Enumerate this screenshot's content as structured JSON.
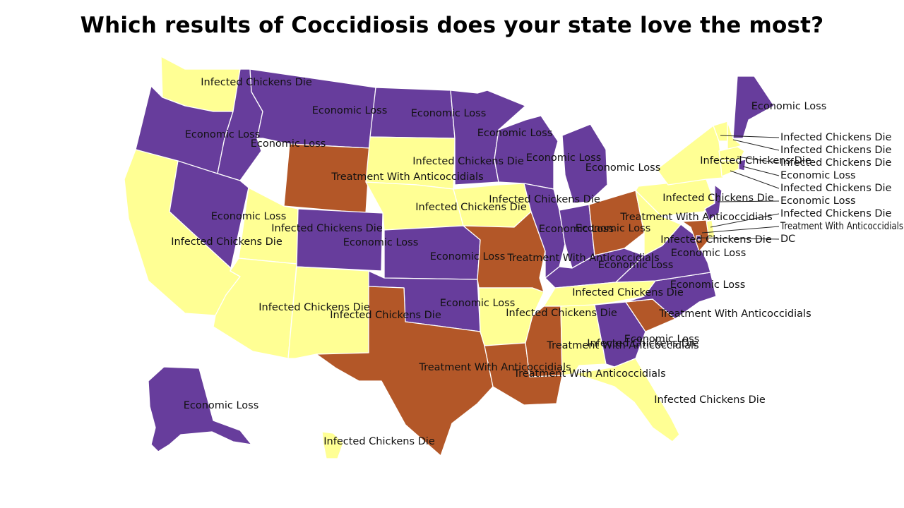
{
  "title": "Which results of Coccidiosis does your state love the most?",
  "colors": {
    "Economic Loss": "#673d9c",
    "Infected Chickens Die": "#ffff94",
    "Treatment With Anticoccidials": "#b35728"
  },
  "states": [
    {
      "id": "WA",
      "category": "Infected Chickens Die",
      "label": "Infected Chickens Die"
    },
    {
      "id": "OR",
      "category": "Economic Loss",
      "label": "Economic Loss"
    },
    {
      "id": "CA",
      "category": "Infected Chickens Die",
      "label": "Infected Chickens Die"
    },
    {
      "id": "ID",
      "category": "Economic Loss",
      "label": "Economic Loss"
    },
    {
      "id": "NV",
      "category": "Economic Loss",
      "label": "Economic Loss"
    },
    {
      "id": "MT",
      "category": "Economic Loss",
      "label": "Economic Loss"
    },
    {
      "id": "WY",
      "category": "Treatment With Anticoccidials",
      "label": "Treatment With Anticoccidials"
    },
    {
      "id": "UT",
      "category": "Infected Chickens Die",
      "label": "Infected Chickens Die"
    },
    {
      "id": "AZ",
      "category": "Infected Chickens Die",
      "label": "Infected Chickens Die"
    },
    {
      "id": "CO",
      "category": "Economic Loss",
      "label": "Economic Loss"
    },
    {
      "id": "NM",
      "category": "Infected Chickens Die",
      "label": "Infected Chickens Die"
    },
    {
      "id": "ND",
      "category": "Economic Loss",
      "label": "Economic Loss"
    },
    {
      "id": "SD",
      "category": "Infected Chickens Die",
      "label": "Infected Chickens Die"
    },
    {
      "id": "NE",
      "category": "Infected Chickens Die",
      "label": "Infected Chickens Die"
    },
    {
      "id": "KS",
      "category": "Economic Loss",
      "label": "Economic Loss"
    },
    {
      "id": "OK",
      "category": "Economic Loss",
      "label": "Economic Loss"
    },
    {
      "id": "TX",
      "category": "Treatment With Anticoccidials",
      "label": "Treatment With Anticoccidials"
    },
    {
      "id": "MN",
      "category": "Economic Loss",
      "label": "Economic Loss"
    },
    {
      "id": "IA",
      "category": "Infected Chickens Die",
      "label": "Infected Chickens Die"
    },
    {
      "id": "MO",
      "category": "Treatment With Anticoccidials",
      "label": "Treatment With Anticoccidials"
    },
    {
      "id": "AR",
      "category": "Infected Chickens Die",
      "label": "Infected Chickens Die"
    },
    {
      "id": "LA",
      "category": "Treatment With Anticoccidials",
      "label": "Treatment With Anticoccidials"
    },
    {
      "id": "WI",
      "category": "Economic Loss",
      "label": "Economic Loss"
    },
    {
      "id": "IL",
      "category": "Economic Loss",
      "label": "Economic Loss"
    },
    {
      "id": "MI",
      "category": "Economic Loss",
      "label": "Economic Loss"
    },
    {
      "id": "IN",
      "category": "Economic Loss",
      "label": "Economic Loss"
    },
    {
      "id": "OH",
      "category": "Treatment With Anticoccidials",
      "label": "Treatment With Anticoccidials"
    },
    {
      "id": "KY",
      "category": "Economic Loss",
      "label": "Economic Loss"
    },
    {
      "id": "TN",
      "category": "Infected Chickens Die",
      "label": "Infected Chickens Die"
    },
    {
      "id": "MS",
      "category": "Treatment With Anticoccidials",
      "label": "Treatment With Anticoccidials"
    },
    {
      "id": "AL",
      "category": "Infected Chickens Die",
      "label": "Infected Chickens Die"
    },
    {
      "id": "GA",
      "category": "Economic Loss",
      "label": "Economic Loss"
    },
    {
      "id": "FL",
      "category": "Infected Chickens Die",
      "label": "Infected Chickens Die"
    },
    {
      "id": "SC",
      "category": "Treatment With Anticoccidials",
      "label": "Treatment With Anticoccidials"
    },
    {
      "id": "NC",
      "category": "Economic Loss",
      "label": "Economic Loss"
    },
    {
      "id": "VA",
      "category": "Economic Loss",
      "label": "Economic Loss"
    },
    {
      "id": "WV",
      "category": "Infected Chickens Die",
      "label": "Infected Chickens Die"
    },
    {
      "id": "PA",
      "category": "Infected Chickens Die",
      "label": "Infected Chickens Die"
    },
    {
      "id": "NY",
      "category": "Infected Chickens Die",
      "label": "Infected Chickens Die"
    },
    {
      "id": "ME",
      "category": "Economic Loss",
      "label": "Economic Loss"
    },
    {
      "id": "VT",
      "category": "Infected Chickens Die",
      "label": "Infected Chickens Die"
    },
    {
      "id": "NH",
      "category": "Infected Chickens Die",
      "label": "Infected Chickens Die"
    },
    {
      "id": "MA",
      "category": "Infected Chickens Die",
      "label": "Infected Chickens Die"
    },
    {
      "id": "RI",
      "category": "Economic Loss",
      "label": "Economic Loss"
    },
    {
      "id": "CT",
      "category": "Infected Chickens Die",
      "label": "Infected Chickens Die"
    },
    {
      "id": "NJ",
      "category": "Economic Loss",
      "label": "Economic Loss"
    },
    {
      "id": "DE",
      "category": "Infected Chickens Die",
      "label": "Infected Chickens Die"
    },
    {
      "id": "MD",
      "category": "Treatment With Anticoccidials",
      "label": "Treatment With Anticoccidials"
    },
    {
      "id": "DC",
      "category": "Economic Loss",
      "label": "DC"
    },
    {
      "id": "AK",
      "category": "Economic Loss",
      "label": "Economic Loss"
    },
    {
      "id": "HI",
      "category": "Infected Chickens Die",
      "label": "Infected Chickens Die"
    }
  ]
}
